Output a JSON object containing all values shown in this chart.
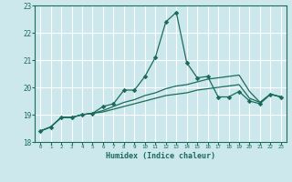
{
  "xlabel": "Humidex (Indice chaleur)",
  "x": [
    0,
    1,
    2,
    3,
    4,
    5,
    6,
    7,
    8,
    9,
    10,
    11,
    12,
    13,
    14,
    15,
    16,
    17,
    18,
    19,
    20,
    21,
    22,
    23
  ],
  "line_spike": [
    18.4,
    18.55,
    18.9,
    18.9,
    19.0,
    19.05,
    19.3,
    19.4,
    19.9,
    19.9,
    20.4,
    21.1,
    22.4,
    22.75,
    20.9,
    20.35,
    20.4,
    19.65,
    19.65,
    19.85,
    19.5,
    19.4,
    19.75,
    19.65
  ],
  "line_upper": [
    18.4,
    18.55,
    18.9,
    18.9,
    19.0,
    19.05,
    19.15,
    19.3,
    19.45,
    19.55,
    19.7,
    19.8,
    19.95,
    20.05,
    20.1,
    20.2,
    20.3,
    20.35,
    20.4,
    20.45,
    19.85,
    19.45,
    19.75,
    19.65
  ],
  "line_lower": [
    18.4,
    18.55,
    18.9,
    18.9,
    19.0,
    19.05,
    19.1,
    19.2,
    19.3,
    19.4,
    19.5,
    19.6,
    19.7,
    19.75,
    19.8,
    19.9,
    19.95,
    20.0,
    20.05,
    20.1,
    19.6,
    19.45,
    19.75,
    19.65
  ],
  "ylim": [
    18,
    23
  ],
  "yticks": [
    18,
    19,
    20,
    21,
    22,
    23
  ],
  "bg_color": "#cce8ec",
  "line_color": "#1a6b5a",
  "grid_color": "#ffffff"
}
